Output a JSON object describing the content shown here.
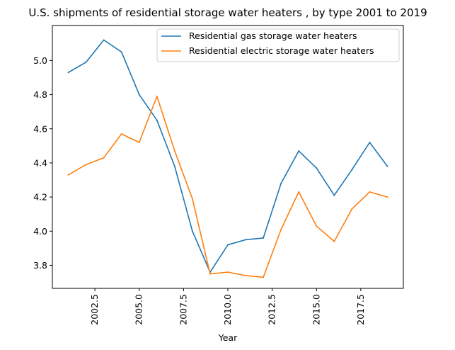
{
  "chart_data": {
    "type": "line",
    "title": "U.S. shipments of residential storage water heaters , by type 2001 to 2019",
    "xlabel": "Year",
    "ylabel": "",
    "x": [
      2001,
      2002,
      2003,
      2004,
      2005,
      2006,
      2007,
      2008,
      2009,
      2010,
      2011,
      2012,
      2013,
      2014,
      2015,
      2016,
      2017,
      2018,
      2019
    ],
    "xlim": [
      2000.1,
      2019.9
    ],
    "ylim": [
      3.665,
      5.205
    ],
    "xticks": [
      2002.5,
      2005.0,
      2007.5,
      2010.0,
      2012.5,
      2015.0,
      2017.5
    ],
    "xtick_labels": [
      "2002.5",
      "2005.0",
      "2007.5",
      "2010.0",
      "2012.5",
      "2015.0",
      "2017.5"
    ],
    "yticks": [
      3.8,
      4.0,
      4.2,
      4.4,
      4.6,
      4.8,
      5.0
    ],
    "ytick_labels": [
      "3.8",
      "4.0",
      "4.2",
      "4.4",
      "4.6",
      "4.8",
      "5.0"
    ],
    "grid": false,
    "legend_position": "top-right",
    "series": [
      {
        "name": "Residential gas storage water heaters",
        "color": "#1f77b4",
        "values": [
          4.93,
          4.99,
          5.12,
          5.05,
          4.8,
          4.65,
          4.38,
          4.0,
          3.76,
          3.92,
          3.95,
          3.96,
          4.28,
          4.47,
          4.37,
          4.21,
          4.36,
          4.52,
          4.38
        ]
      },
      {
        "name": "Residential electric storage water heaters",
        "color": "#ff7f0e",
        "values": [
          4.33,
          4.39,
          4.43,
          4.57,
          4.52,
          4.79,
          4.47,
          4.19,
          3.75,
          3.76,
          3.74,
          3.73,
          4.01,
          4.23,
          4.03,
          3.94,
          4.13,
          4.23,
          4.2
        ]
      }
    ]
  }
}
